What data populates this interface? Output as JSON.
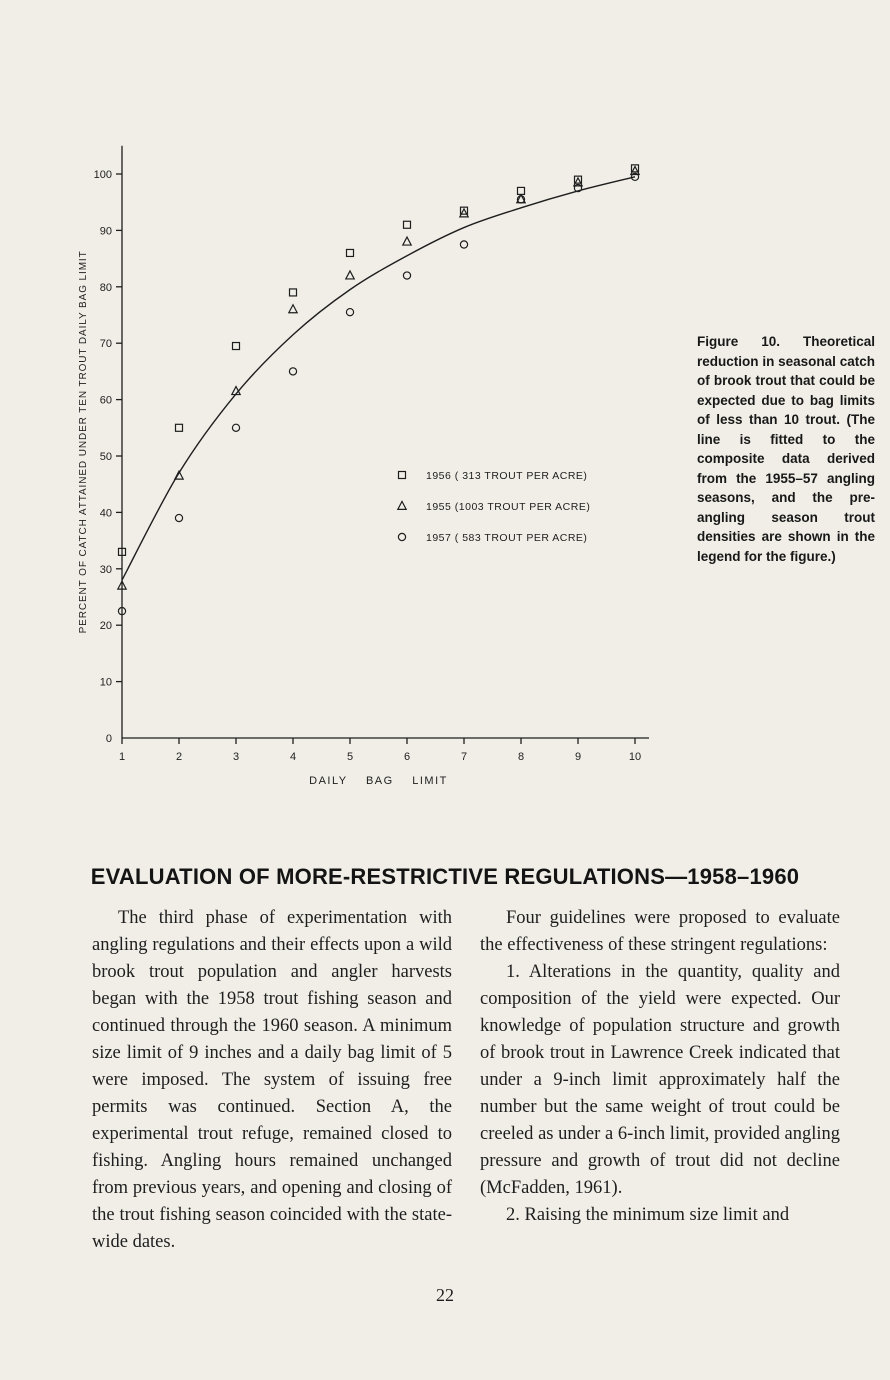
{
  "colors": {
    "paper": "#f1eee7",
    "ink": "#1e1e1e"
  },
  "page_number": "22",
  "figure": {
    "caption": "Figure 10. Theoretical reduction in seasonal catch of brook trout that could be expected due to bag limits of less than 10 trout. (The line is fitted to the composite data derived from the 1955–57 angling seasons, and the pre-angling season trout densities are shown in the legend for the figure.)"
  },
  "section": {
    "heading": "EVALUATION OF MORE-RESTRICTIVE REGULATIONS—1958–1960",
    "left_column": [
      "The third phase of experimentation with angling regulations and their effects upon a wild brook trout population and angler harvests began with the 1958 trout fishing season and continued through the 1960 season. A minimum size limit of 9 inches and a daily bag limit of 5 were imposed. The system of issuing free permits was continued. Section A, the experimental trout refuge, remained closed to fishing. Angling hours remained unchanged from previous years, and opening and closing of the trout fishing season coincided with the state-wide dates."
    ],
    "right_column": [
      "Four guidelines were proposed to evaluate the effectiveness of these stringent regulations:",
      "1. Alterations in the quantity, quality and composition of the yield were expected. Our knowledge of population structure and growth of brook trout in Lawrence Creek indicated that under a 9-inch limit approximately half the number but the same weight of trout could be creeled as under a 6-inch limit, provided angling pressure and growth of trout did not decline (McFadden, 1961).",
      "2. Raising the minimum size limit and"
    ]
  },
  "chart_data": {
    "type": "scatter",
    "title": "",
    "xlabel": "DAILY BAG LIMIT",
    "ylabel": "PERCENT OF CATCH ATTAINED UNDER TEN TROUT DAILY BAG LIMIT",
    "x": [
      1,
      2,
      3,
      4,
      5,
      6,
      7,
      8,
      9,
      10
    ],
    "xlim": [
      1,
      10
    ],
    "ylim": [
      0,
      105
    ],
    "xticks": [
      1,
      2,
      3,
      4,
      5,
      6,
      7,
      8,
      9,
      10
    ],
    "yticks": [
      0,
      10,
      20,
      30,
      40,
      50,
      60,
      70,
      80,
      90,
      100
    ],
    "grid": false,
    "legend_position": "inside-right-middle",
    "series": [
      {
        "name": "1956",
        "marker": "square",
        "legend": "1956 ( 313 TROUT PER ACRE)",
        "values": [
          33,
          55,
          69.5,
          79,
          86,
          91,
          93.5,
          97,
          99,
          101
        ]
      },
      {
        "name": "1955",
        "marker": "triangle",
        "legend": "1955 (1003 TROUT PER ACRE)",
        "values": [
          27,
          46.5,
          61.5,
          76,
          82,
          88,
          93,
          95.5,
          98.5,
          100.5
        ]
      },
      {
        "name": "1957",
        "marker": "circle",
        "legend": "1957 ( 583 TROUT PER ACRE)",
        "values": [
          22.5,
          39,
          55,
          65,
          75.5,
          82,
          87.5,
          95.5,
          97.5,
          99.5
        ]
      }
    ],
    "fitted_curve": [
      28,
      47,
      61,
      71.5,
      79.5,
      85.5,
      90.5,
      94,
      97,
      99.5
    ]
  }
}
